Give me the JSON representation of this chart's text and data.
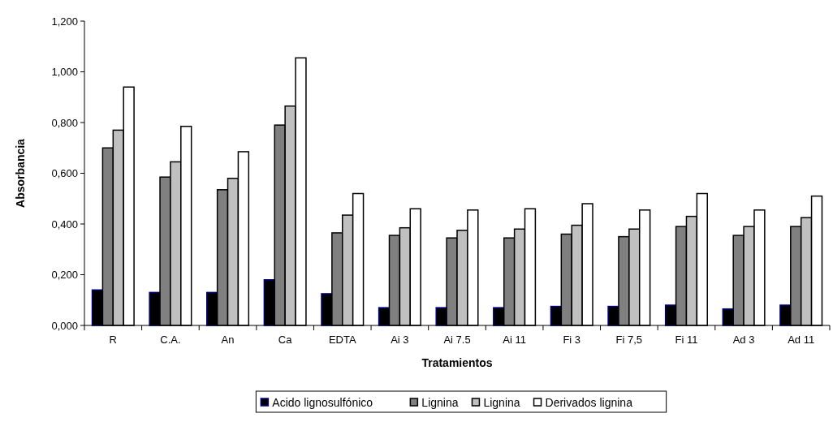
{
  "chart_data": {
    "type": "bar",
    "xlabel": "Tratamientos",
    "ylabel": "Absorbancia",
    "categories": [
      "R",
      "C.A.",
      "An",
      "Ca",
      "EDTA",
      "Ai 3",
      "Ai 7.5",
      "Ai 11",
      "Fi 3",
      "Fi 7,5",
      "Fi 11",
      "Ad 3",
      "Ad 11"
    ],
    "series": [
      {
        "name": "Acido lignosulfónico",
        "color": "#000000",
        "values": [
          0.14,
          0.13,
          0.13,
          0.18,
          0.125,
          0.07,
          0.07,
          0.07,
          0.075,
          0.075,
          0.08,
          0.065,
          0.08
        ]
      },
      {
        "name": "Lignina",
        "color": "#808080",
        "values": [
          0.7,
          0.585,
          0.535,
          0.79,
          0.365,
          0.355,
          0.345,
          0.345,
          0.36,
          0.35,
          0.39,
          0.355,
          0.39
        ]
      },
      {
        "name": "Lignina",
        "color": "#c0c0c0",
        "values": [
          0.77,
          0.645,
          0.58,
          0.865,
          0.435,
          0.385,
          0.375,
          0.38,
          0.395,
          0.38,
          0.43,
          0.39,
          0.425
        ]
      },
      {
        "name": "Derivados lignina",
        "color": "#ffffff",
        "values": [
          0.94,
          0.785,
          0.685,
          1.055,
          0.52,
          0.46,
          0.455,
          0.46,
          0.48,
          0.455,
          0.52,
          0.455,
          0.51
        ]
      }
    ],
    "ylim": [
      0,
      1.2
    ],
    "yticks": [
      {
        "value": 0,
        "label": "0,000"
      },
      {
        "value": 0.2,
        "label": "0,200"
      },
      {
        "value": 0.4,
        "label": "0,400"
      },
      {
        "value": 0.6,
        "label": "0,600"
      },
      {
        "value": 0.8,
        "label": "0,800"
      },
      {
        "value": 1,
        "label": "1,000"
      },
      {
        "value": 1.2,
        "label": "1,200"
      }
    ],
    "grid": false,
    "legend": "bottom"
  }
}
